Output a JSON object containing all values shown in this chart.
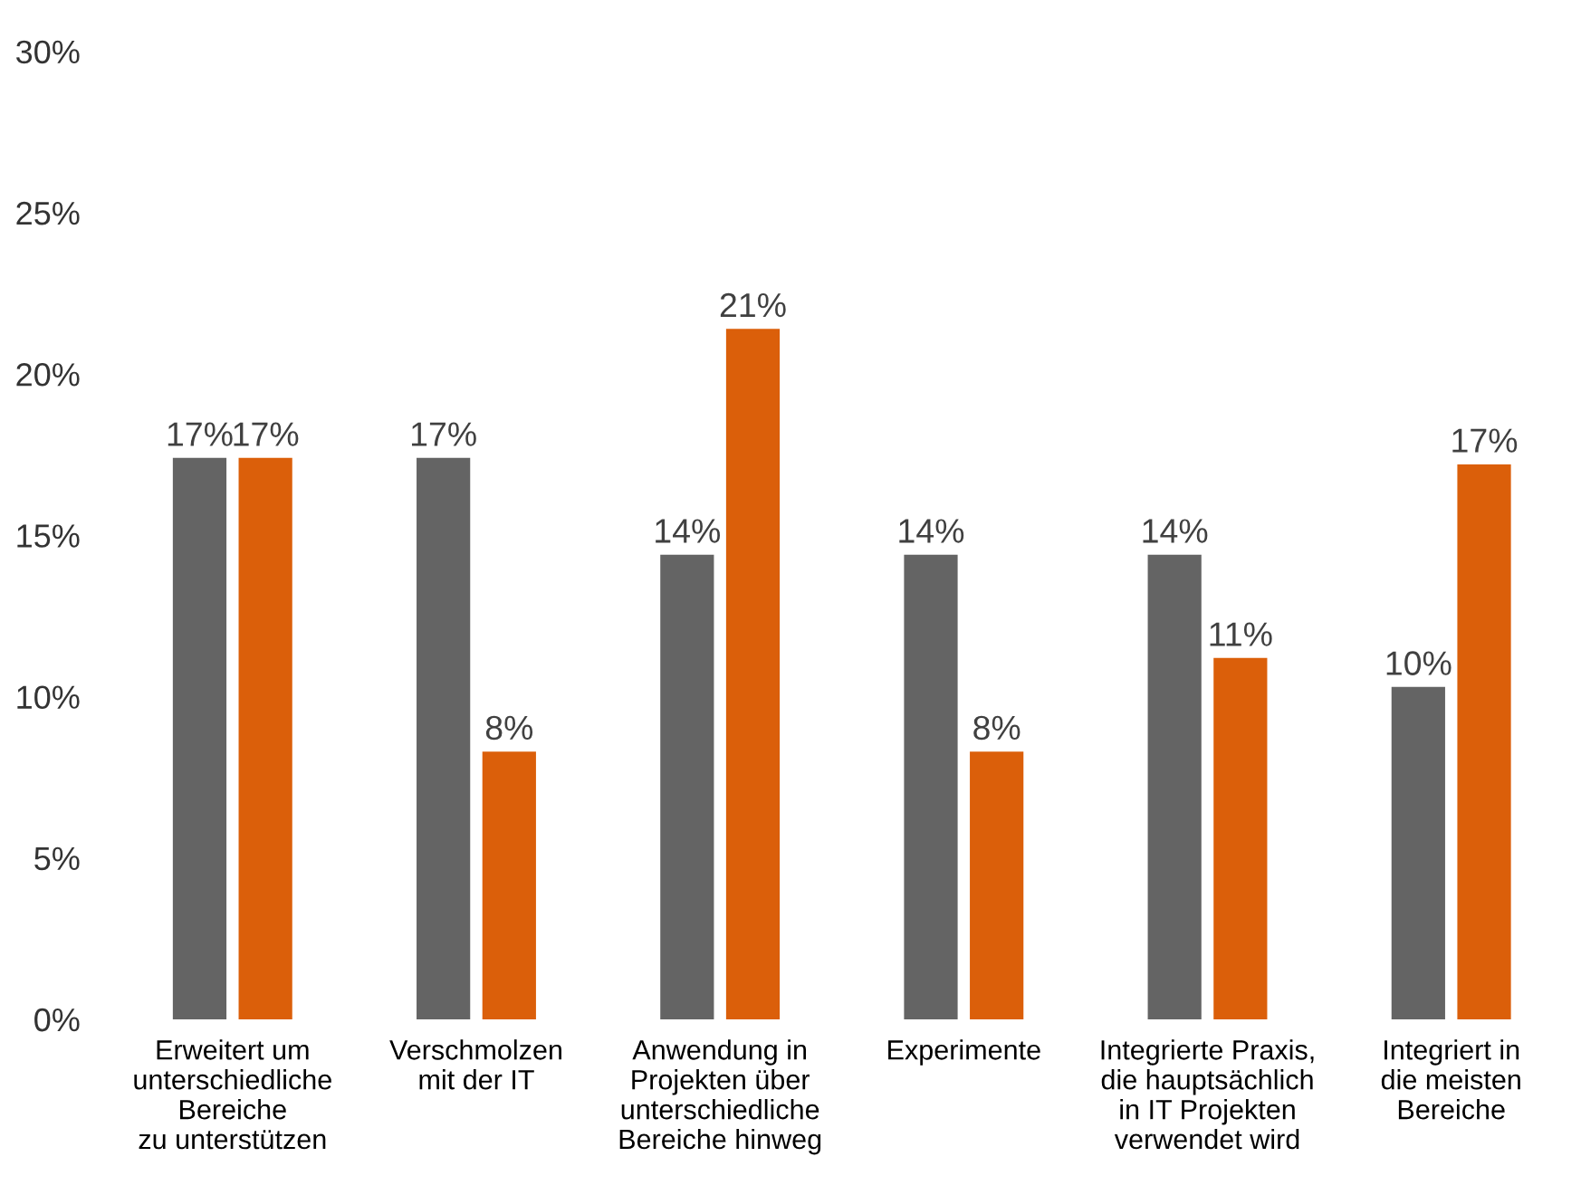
{
  "chart_data": {
    "type": "bar",
    "categories": [
      "Erweitert um\nunterschiedliche\nBereiche\nzu unterstützen",
      "Verschmolzen\nmit der IT",
      "Anwendung in\nProjekten über\nunterschiedliche\nBereiche hinweg",
      "Experimente",
      "Integrierte Praxis,\ndie hauptsächlich\nin IT Projekten\nverwendet wird",
      "Integriert in\ndie meisten\nBereiche"
    ],
    "series": [
      {
        "color": "#646464",
        "values": [
          17.4,
          17.4,
          14.4,
          14.4,
          14.4,
          10.3
        ],
        "value_labels": [
          "17%",
          "17%",
          "14%",
          "14%",
          "14%",
          "10%"
        ]
      },
      {
        "color": "#db5f0a",
        "values": [
          17.4,
          8.3,
          21.4,
          8.3,
          11.2,
          17.2
        ],
        "value_labels": [
          "17%",
          "8%",
          "21%",
          "8%",
          "11%",
          "17%"
        ]
      }
    ],
    "ylim": [
      0,
      30
    ],
    "yticks": [
      {
        "value": 0,
        "label": "0%"
      },
      {
        "value": 5,
        "label": "5%"
      },
      {
        "value": 10,
        "label": "10%"
      },
      {
        "value": 15,
        "label": "15%"
      },
      {
        "value": 20,
        "label": "20%"
      },
      {
        "value": 25,
        "label": "25%"
      },
      {
        "value": 30,
        "label": "30%"
      }
    ],
    "grid": false,
    "legend": false
  }
}
